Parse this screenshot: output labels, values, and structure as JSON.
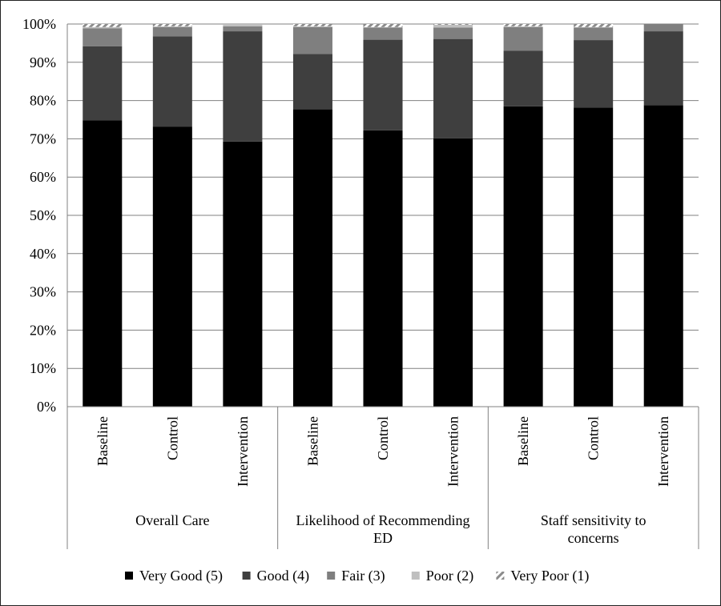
{
  "chart_data": {
    "type": "bar",
    "stacked": true,
    "percent_stacked": true,
    "groups": [
      {
        "label": "Overall Care",
        "subcategories": [
          "Baseline",
          "Control",
          "Intervention"
        ]
      },
      {
        "label": "Likelihood of Recommending ED",
        "subcategories": [
          "Baseline",
          "Control",
          "Intervention"
        ]
      },
      {
        "label": "Staff sensitivity to concerns",
        "subcategories": [
          "Baseline",
          "Control",
          "Intervention"
        ]
      }
    ],
    "y_ticks": [
      "0%",
      "10%",
      "20%",
      "30%",
      "40%",
      "50%",
      "60%",
      "70%",
      "80%",
      "90%",
      "100%"
    ],
    "ylim": [
      0,
      100
    ],
    "grid": true,
    "legend_position": "bottom",
    "series": [
      {
        "name": "Very Good (5)",
        "color": "#000000",
        "pattern": "solid",
        "values": [
          74.8,
          73.2,
          69.3,
          77.7,
          72.2,
          70.1,
          78.5,
          78.2,
          78.8
        ]
      },
      {
        "name": "Good (4)",
        "color": "#3f3f3f",
        "pattern": "solid",
        "values": [
          19.4,
          23.6,
          28.8,
          14.5,
          23.7,
          26.0,
          14.5,
          17.6,
          19.3
        ]
      },
      {
        "name": "Fair (3)",
        "color": "#7f7f7f",
        "pattern": "solid",
        "values": [
          4.7,
          2.4,
          1.3,
          7.0,
          3.2,
          3.0,
          6.2,
          3.3,
          1.9
        ]
      },
      {
        "name": "Poor (2)",
        "color": "#bfbfbf",
        "pattern": "solid",
        "values": [
          0.3,
          0.2,
          0.6,
          0.2,
          0.1,
          0.7,
          0.2,
          0.1,
          0.0
        ]
      },
      {
        "name": "Very Poor (1)",
        "color": "#9a9a9a",
        "pattern": "hatch",
        "values": [
          0.8,
          0.6,
          0.0,
          0.6,
          0.8,
          0.2,
          0.6,
          0.8,
          0.0
        ]
      }
    ]
  }
}
